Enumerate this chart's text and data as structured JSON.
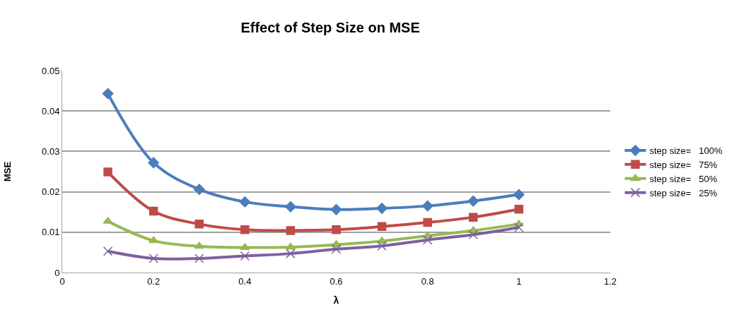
{
  "chart_data": {
    "type": "line",
    "title": "Effect of Step Size on MSE",
    "xlabel": "λ",
    "ylabel": "MSE",
    "x": [
      0.1,
      0.2,
      0.3,
      0.4,
      0.5,
      0.6,
      0.7,
      0.8,
      0.9,
      1.0
    ],
    "series": [
      {
        "name": "step size=   100%",
        "color": "#4a7ebb",
        "marker": "diamond",
        "values": [
          0.0443,
          0.0272,
          0.0206,
          0.0175,
          0.0163,
          0.0156,
          0.0159,
          0.0165,
          0.0177,
          0.0193
        ]
      },
      {
        "name": "step size=   75%",
        "color": "#be4b48",
        "marker": "square",
        "values": [
          0.0249,
          0.0152,
          0.012,
          0.0106,
          0.0104,
          0.0106,
          0.0114,
          0.0124,
          0.0137,
          0.0157
        ]
      },
      {
        "name": "step size=   50%",
        "color": "#98b954",
        "marker": "triangle",
        "values": [
          0.0127,
          0.0079,
          0.0065,
          0.0062,
          0.0063,
          0.0069,
          0.0078,
          0.0091,
          0.0104,
          0.012
        ]
      },
      {
        "name": "step size=   25%",
        "color": "#7d60a0",
        "marker": "cross",
        "values": [
          0.0053,
          0.0035,
          0.0035,
          0.0041,
          0.0047,
          0.0058,
          0.0066,
          0.0081,
          0.0094,
          0.0112
        ]
      }
    ],
    "xlim": [
      0,
      1.2
    ],
    "xticks": [
      0,
      0.2,
      0.4,
      0.6,
      0.8,
      1,
      1.2
    ],
    "ylim": [
      0,
      0.05
    ],
    "yticks": [
      0,
      0.01,
      0.02,
      0.03,
      0.04,
      0.05
    ],
    "grid": "y",
    "legend": "right",
    "line_style": "solid"
  }
}
